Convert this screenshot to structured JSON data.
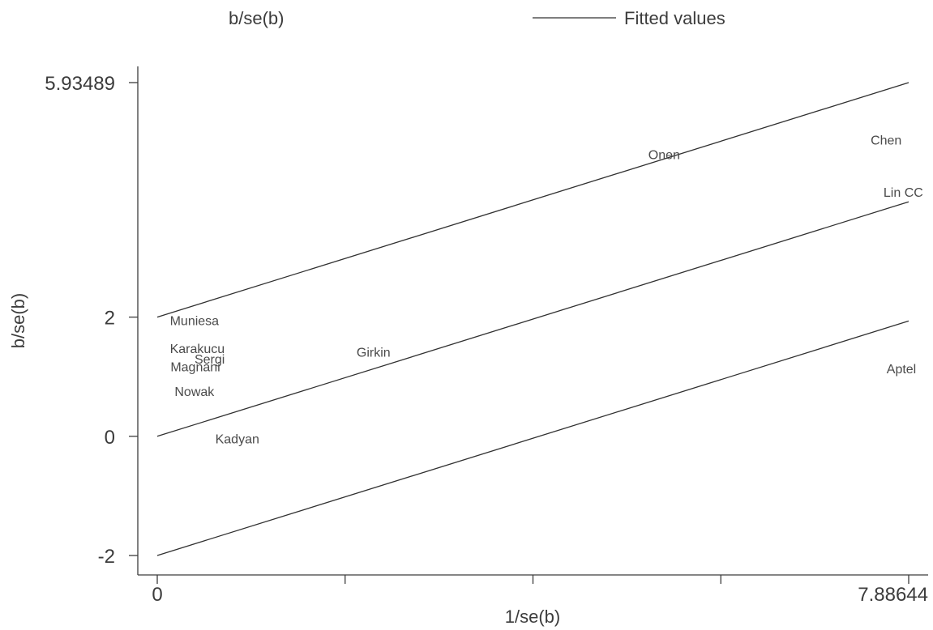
{
  "chart_data": {
    "type": "scatter",
    "legend": {
      "placement": "top",
      "items": [
        {
          "label": "b/se(b)",
          "marker": "label"
        },
        {
          "label": "Fitted values",
          "marker": "line"
        }
      ]
    },
    "xlabel": "1/se(b)",
    "ylabel": "b/se(b)",
    "xlim": [
      0,
      7.88644
    ],
    "ylim": [
      -2,
      5.93489
    ],
    "x_tick_labels": [
      "0",
      "",
      "",
      "",
      "7.88644"
    ],
    "x_ticks": [
      0,
      1.97161,
      3.94322,
      5.91483,
      7.88644
    ],
    "y_ticks": [
      -2,
      0,
      2,
      5.93489
    ],
    "y_tick_labels": [
      "-2",
      "0",
      "2",
      "5.93489"
    ],
    "points": [
      {
        "label": "Muniesa",
        "x": 0.39,
        "y": 1.95
      },
      {
        "label": "Karakucu",
        "x": 0.42,
        "y": 1.48
      },
      {
        "label": "Sergi",
        "x": 0.55,
        "y": 1.3
      },
      {
        "label": "Magnani",
        "x": 0.4,
        "y": 1.17
      },
      {
        "label": "Nowak",
        "x": 0.39,
        "y": 0.76
      },
      {
        "label": "Kadyan",
        "x": 0.84,
        "y": -0.04
      },
      {
        "label": "Girkin",
        "x": 2.27,
        "y": 1.42
      },
      {
        "label": "Onen",
        "x": 5.32,
        "y": 4.73
      },
      {
        "label": "Chen",
        "x": 7.65,
        "y": 4.98
      },
      {
        "label": "Lin CC",
        "x": 7.83,
        "y": 4.1
      },
      {
        "label": "Aptel",
        "x": 7.81,
        "y": 1.14
      }
    ],
    "fitted_lines": [
      {
        "x": [
          0,
          7.88644
        ],
        "y": [
          2,
          5.93489
        ]
      },
      {
        "x": [
          0,
          7.88644
        ],
        "y": [
          0,
          3.93489
        ]
      },
      {
        "x": [
          0,
          7.88644
        ],
        "y": [
          -2,
          1.93489
        ]
      }
    ]
  }
}
